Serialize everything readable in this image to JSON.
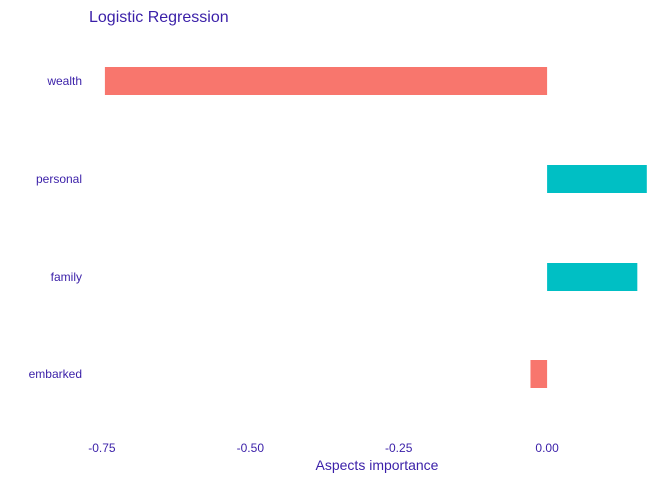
{
  "chart_data": {
    "type": "bar",
    "orientation": "horizontal",
    "title": "Logistic Regression",
    "xlabel": "Aspects importance",
    "ylabel": "",
    "categories": [
      "wealth",
      "personal",
      "family",
      "embarked"
    ],
    "values": [
      -0.745,
      0.168,
      0.152,
      -0.028
    ],
    "xlim": [
      -0.76,
      0.17
    ],
    "xticks": [
      -0.75,
      -0.5,
      -0.25,
      0.0
    ],
    "xtick_labels": [
      "-0.75",
      "-0.50",
      "-0.25",
      "0.00"
    ],
    "grid": false,
    "colors": {
      "negative": "#f8766d",
      "positive": "#00bfc4",
      "text": "#3a1fa8"
    }
  }
}
